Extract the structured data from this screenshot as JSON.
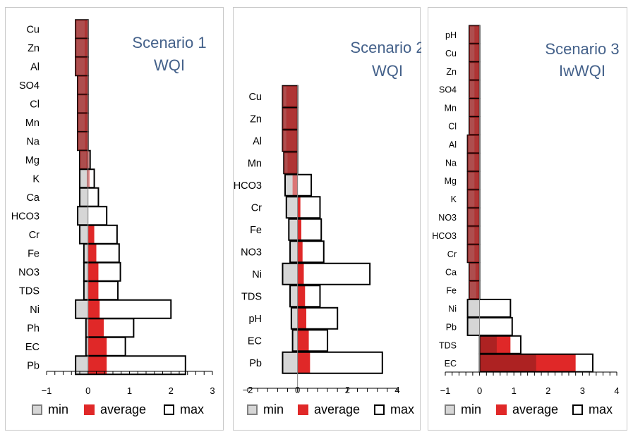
{
  "chart_data": [
    {
      "type": "bar",
      "title_lines": [
        "Scenario 1",
        "WQI"
      ],
      "categories": [
        "Cu",
        "Zn",
        "Al",
        "SO4",
        "Cl",
        "Mn",
        "Na",
        "Mg",
        "K",
        "Ca",
        "HCO3",
        "Cr",
        "Fe",
        "NO3",
        "TDS",
        "Ni",
        "Ph",
        "EC",
        "Pb"
      ],
      "series": [
        {
          "name": "min",
          "values": [
            -0.3,
            -0.3,
            -0.3,
            -0.25,
            -0.25,
            -0.25,
            -0.25,
            -0.2,
            -0.2,
            -0.2,
            -0.25,
            -0.2,
            -0.1,
            -0.1,
            -0.1,
            -0.3,
            -0.05,
            -0.05,
            -0.3
          ]
        },
        {
          "name": "average",
          "values": [
            -0.08,
            -0.08,
            -0.08,
            -0.07,
            -0.07,
            -0.08,
            -0.07,
            -0.04,
            -0.03,
            0.0,
            0.0,
            0.15,
            0.2,
            0.25,
            0.25,
            0.28,
            0.38,
            0.45,
            0.45
          ]
        },
        {
          "name": "max",
          "values": [
            0.0,
            0.0,
            0.0,
            0.0,
            0.0,
            0.0,
            0.0,
            0.05,
            0.15,
            0.25,
            0.45,
            0.7,
            0.75,
            0.78,
            0.72,
            2.0,
            1.1,
            0.9,
            2.35
          ]
        }
      ],
      "xlim": [
        -1,
        3
      ],
      "xticks": [
        "−1",
        "0",
        "1",
        "2",
        "3"
      ],
      "xtick_values": [
        -1,
        0,
        1,
        2,
        3
      ],
      "legend": [
        "min",
        "average",
        "max"
      ]
    },
    {
      "type": "bar",
      "title_lines": [
        "Scenario 2",
        "WQI"
      ],
      "categories": [
        "Cu",
        "Zn",
        "Al",
        "Mn",
        "HCO3",
        "Cr",
        "Fe",
        "NO3",
        "Ni",
        "TDS",
        "pH",
        "EC",
        "Pb"
      ],
      "series": [
        {
          "name": "min",
          "values": [
            -0.6,
            -0.6,
            -0.6,
            -0.55,
            -0.5,
            -0.45,
            -0.35,
            -0.3,
            -0.6,
            -0.3,
            -0.25,
            -0.2,
            -0.6
          ]
        },
        {
          "name": "average",
          "values": [
            -0.45,
            -0.45,
            -0.45,
            -0.4,
            -0.2,
            0.1,
            0.15,
            0.2,
            0.25,
            0.3,
            0.35,
            0.45,
            0.5
          ]
        },
        {
          "name": "max",
          "values": [
            0.0,
            0.0,
            0.0,
            0.0,
            0.55,
            0.9,
            0.95,
            1.05,
            2.9,
            0.9,
            1.6,
            1.2,
            3.4
          ]
        }
      ],
      "xlim": [
        -2,
        4
      ],
      "xticks": [
        "−2",
        "0",
        "2",
        "4"
      ],
      "xtick_values": [
        -2,
        0,
        2,
        4
      ],
      "legend": [
        "min",
        "average",
        "max"
      ]
    },
    {
      "type": "bar",
      "title_lines": [
        "Scenario 3",
        "IwWQI"
      ],
      "categories": [
        "pH",
        "Cu",
        "Zn",
        "SO4",
        "Mn",
        "Cl",
        "Al",
        "Na",
        "Mg",
        "K",
        "NO3",
        "HCO3",
        "Cr",
        "Ca",
        "Fe",
        "Ni",
        "Pb",
        "TDS",
        "EC"
      ],
      "series": [
        {
          "name": "min",
          "values": [
            -0.3,
            -0.3,
            -0.3,
            -0.3,
            -0.3,
            -0.3,
            -0.35,
            -0.35,
            -0.35,
            -0.35,
            -0.35,
            -0.35,
            -0.35,
            -0.3,
            -0.3,
            -0.35,
            -0.35,
            0.0,
            0.0
          ]
        },
        {
          "name": "average",
          "values": [
            -0.15,
            -0.15,
            -0.15,
            -0.15,
            -0.15,
            -0.15,
            -0.15,
            -0.15,
            -0.15,
            -0.15,
            -0.15,
            -0.15,
            -0.15,
            -0.12,
            -0.1,
            0.0,
            0.0,
            0.9,
            2.8
          ]
        },
        {
          "name": "max",
          "values": [
            0.0,
            0.0,
            0.0,
            0.0,
            0.0,
            0.0,
            0.0,
            0.0,
            0.0,
            0.0,
            0.0,
            0.0,
            0.0,
            0.0,
            0.0,
            0.9,
            0.95,
            1.2,
            3.3
          ]
        },
        {
          "name": "overlay_start",
          "values": [
            -0.3,
            -0.3,
            -0.3,
            -0.3,
            -0.3,
            -0.3,
            -0.35,
            -0.35,
            -0.35,
            -0.35,
            -0.35,
            -0.35,
            -0.35,
            -0.3,
            -0.3,
            0,
            0,
            0,
            0
          ]
        },
        {
          "name": "overlay_end",
          "values": [
            0,
            0,
            0,
            0,
            0,
            0,
            0,
            0,
            0,
            0,
            0,
            0,
            0,
            0,
            0,
            0,
            0,
            0.5,
            1.65
          ]
        }
      ],
      "xlim": [
        -1,
        4
      ],
      "xticks": [
        "−1",
        "0",
        "1",
        "2",
        "3",
        "4"
      ],
      "xtick_values": [
        -1,
        0,
        1,
        2,
        3,
        4
      ],
      "legend": [
        "min",
        "average",
        "max"
      ]
    }
  ],
  "colors": {
    "min_fill": "#d6d6d6",
    "min_stroke": "#808080",
    "average_fill": "#e02828",
    "max_fill": "#ffffff",
    "max_stroke": "#000000",
    "overlay": "#a02020",
    "title": "#44618a",
    "text": "#000000",
    "axis": "#000000"
  }
}
